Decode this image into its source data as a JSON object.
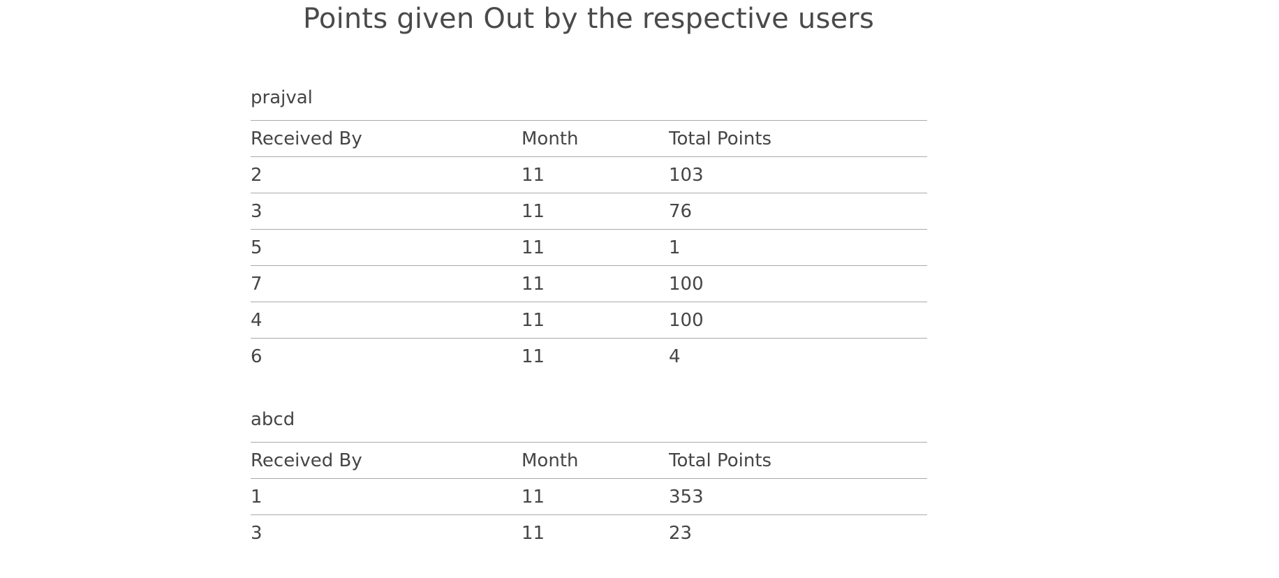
{
  "title": "Points given Out by the respective users",
  "columns": {
    "received_by": "Received By",
    "month": "Month",
    "total_points": "Total Points"
  },
  "sections": [
    {
      "user": "prajval",
      "rows": [
        {
          "received_by": "2",
          "month": "11",
          "total_points": "103"
        },
        {
          "received_by": "3",
          "month": "11",
          "total_points": "76"
        },
        {
          "received_by": "5",
          "month": "11",
          "total_points": "1"
        },
        {
          "received_by": "7",
          "month": "11",
          "total_points": "100"
        },
        {
          "received_by": "4",
          "month": "11",
          "total_points": "100"
        },
        {
          "received_by": "6",
          "month": "11",
          "total_points": "4"
        }
      ]
    },
    {
      "user": "abcd",
      "rows": [
        {
          "received_by": "1",
          "month": "11",
          "total_points": "353"
        },
        {
          "received_by": "3",
          "month": "11",
          "total_points": "23"
        }
      ]
    }
  ]
}
